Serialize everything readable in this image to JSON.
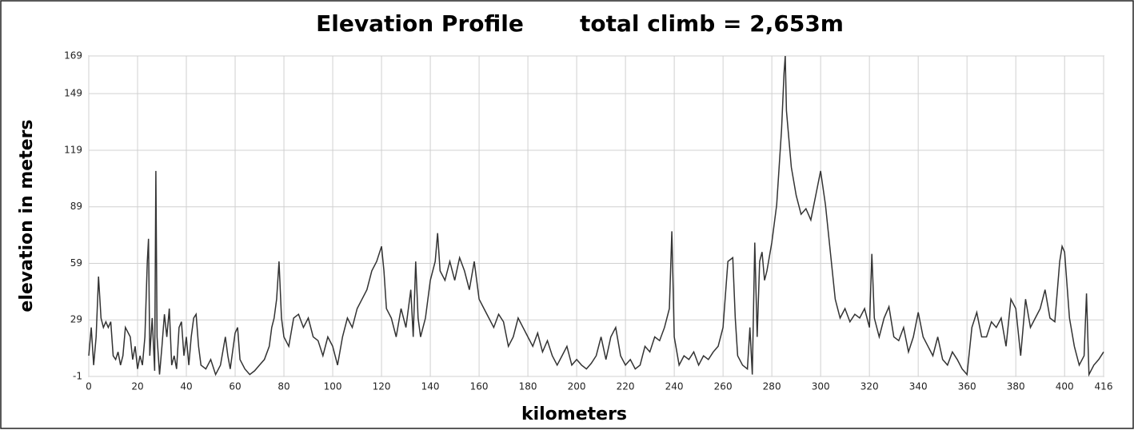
{
  "chart_data": {
    "type": "line",
    "title": "Elevation Profile",
    "subtitle": "total climb = 2,653m",
    "x_label": "kilometers",
    "y_label": "elevation in meters",
    "grid": true,
    "xlim": [
      0,
      416
    ],
    "ylim": [
      -1,
      169
    ],
    "xticks": [
      0,
      20,
      40,
      60,
      80,
      100,
      120,
      140,
      160,
      180,
      200,
      220,
      240,
      260,
      280,
      300,
      320,
      340,
      360,
      380,
      400,
      416
    ],
    "yticks": [
      -1,
      29,
      59,
      89,
      119,
      149,
      169
    ],
    "series": [
      {
        "name": "elevation",
        "color": "#333333",
        "x": [
          0,
          1,
          2,
          3,
          4,
          5,
          6,
          7,
          8,
          9,
          10,
          11,
          12,
          13,
          14,
          15,
          17,
          18,
          19,
          20,
          21,
          22,
          23,
          24,
          24.5,
          25,
          26,
          27,
          27.5,
          28,
          29,
          30,
          31,
          32,
          33,
          34,
          35,
          36,
          37,
          38,
          39,
          40,
          41,
          42,
          43,
          44,
          45,
          46,
          48,
          50,
          52,
          54,
          56,
          57,
          58,
          60,
          61,
          62,
          64,
          66,
          68,
          70,
          72,
          74,
          75,
          76,
          77,
          78,
          79,
          80,
          82,
          84,
          86,
          88,
          90,
          92,
          94,
          96,
          98,
          100,
          102,
          104,
          106,
          108,
          110,
          112,
          114,
          116,
          118,
          120,
          121,
          122,
          124,
          126,
          128,
          130,
          132,
          133,
          134,
          135,
          136,
          138,
          140,
          142,
          143,
          144,
          146,
          148,
          150,
          152,
          154,
          156,
          158,
          160,
          162,
          164,
          166,
          168,
          170,
          172,
          174,
          176,
          178,
          180,
          182,
          184,
          186,
          188,
          190,
          192,
          194,
          196,
          198,
          200,
          202,
          204,
          206,
          208,
          210,
          212,
          214,
          216,
          218,
          220,
          222,
          224,
          226,
          228,
          230,
          232,
          234,
          236,
          238,
          239,
          240,
          242,
          244,
          246,
          248,
          250,
          252,
          254,
          256,
          258,
          260,
          262,
          264,
          265,
          266,
          268,
          270,
          271,
          272,
          273,
          274,
          275,
          276,
          277,
          278,
          280,
          282,
          284,
          285,
          285.5,
          286,
          288,
          290,
          292,
          294,
          296,
          298,
          300,
          302,
          304,
          306,
          308,
          310,
          312,
          314,
          316,
          318,
          320,
          321,
          322,
          324,
          326,
          328,
          330,
          332,
          334,
          336,
          338,
          340,
          342,
          344,
          346,
          348,
          350,
          352,
          354,
          356,
          358,
          360,
          362,
          364,
          366,
          368,
          370,
          372,
          374,
          376,
          378,
          380,
          382,
          384,
          386,
          388,
          390,
          392,
          394,
          396,
          398,
          399,
          400,
          402,
          404,
          406,
          408,
          409,
          410,
          412,
          414,
          416
        ],
        "values": [
          10,
          25,
          5,
          20,
          52,
          30,
          25,
          28,
          25,
          28,
          10,
          8,
          12,
          5,
          10,
          25,
          20,
          8,
          15,
          3,
          10,
          5,
          20,
          60,
          72,
          10,
          30,
          2,
          108,
          20,
          0,
          15,
          32,
          20,
          35,
          5,
          10,
          3,
          25,
          28,
          10,
          20,
          5,
          20,
          30,
          32,
          15,
          5,
          3,
          8,
          0,
          5,
          20,
          10,
          3,
          22,
          25,
          8,
          3,
          0,
          2,
          5,
          8,
          15,
          25,
          30,
          40,
          60,
          30,
          20,
          15,
          30,
          32,
          25,
          30,
          20,
          18,
          10,
          20,
          15,
          5,
          20,
          30,
          25,
          35,
          40,
          45,
          55,
          60,
          68,
          55,
          35,
          30,
          20,
          35,
          25,
          45,
          20,
          60,
          30,
          20,
          30,
          50,
          60,
          75,
          55,
          50,
          60,
          50,
          62,
          55,
          45,
          60,
          40,
          35,
          30,
          25,
          32,
          28,
          15,
          20,
          30,
          25,
          20,
          15,
          22,
          12,
          18,
          10,
          5,
          10,
          15,
          5,
          8,
          5,
          3,
          6,
          10,
          20,
          8,
          20,
          25,
          10,
          5,
          8,
          3,
          5,
          15,
          12,
          20,
          18,
          25,
          35,
          76,
          20,
          5,
          10,
          8,
          12,
          5,
          10,
          8,
          12,
          15,
          25,
          60,
          62,
          30,
          10,
          5,
          3,
          25,
          0,
          70,
          20,
          60,
          65,
          50,
          55,
          70,
          90,
          130,
          160,
          169,
          140,
          110,
          95,
          85,
          88,
          82,
          95,
          108,
          90,
          65,
          40,
          30,
          35,
          28,
          32,
          30,
          35,
          25,
          64,
          30,
          20,
          30,
          36,
          20,
          18,
          25,
          12,
          20,
          33,
          20,
          15,
          10,
          20,
          8,
          5,
          12,
          8,
          3,
          0,
          25,
          33,
          20,
          20,
          28,
          25,
          30,
          15,
          40,
          35,
          10,
          40,
          25,
          30,
          35,
          45,
          30,
          28,
          60,
          68,
          65,
          30,
          15,
          5,
          10,
          43,
          0,
          5,
          8,
          12
        ]
      }
    ]
  }
}
